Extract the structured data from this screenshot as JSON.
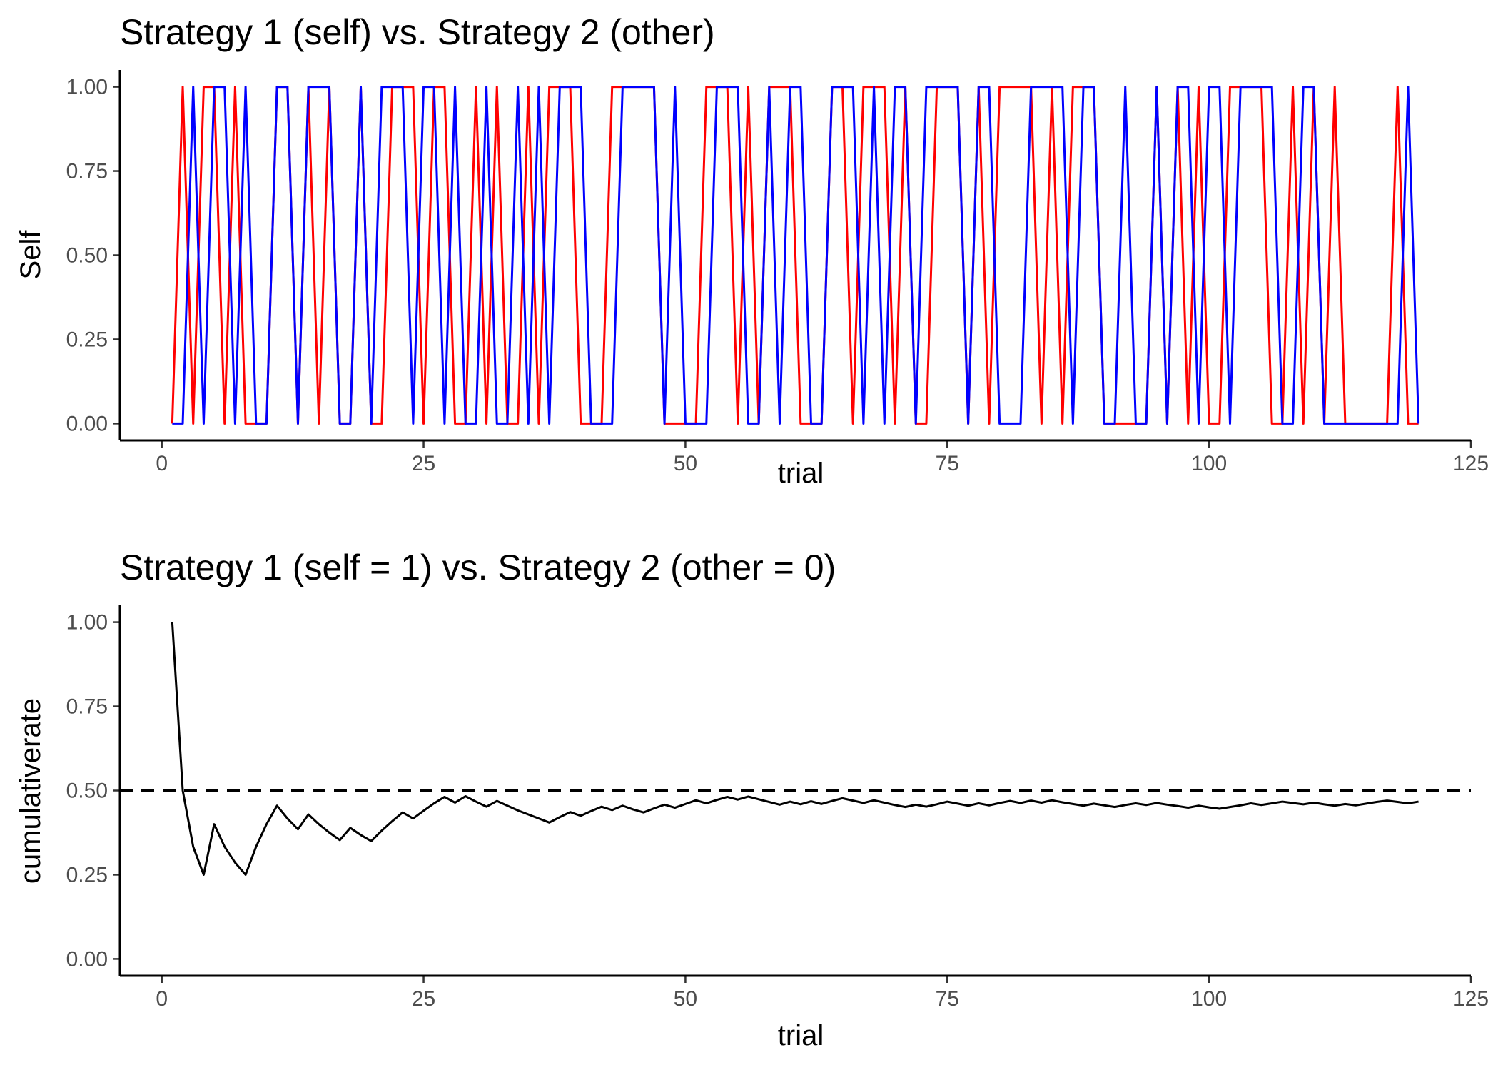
{
  "chart_data": [
    {
      "type": "line",
      "title": "Strategy 1 (self) vs. Strategy 2 (other)",
      "xlabel": "trial",
      "ylabel": "Self",
      "xlim": [
        -4,
        125
      ],
      "ylim": [
        -0.05,
        1.05
      ],
      "xticks": [
        0,
        25,
        50,
        75,
        100,
        125
      ],
      "yticks": [
        0,
        0.25,
        0.5,
        0.75,
        1
      ],
      "xtick_labels": [
        "0",
        "25",
        "50",
        "75",
        "100",
        "125"
      ],
      "ytick_labels": [
        "0.00",
        "0.25",
        "0.50",
        "0.75",
        "1.00"
      ],
      "grid": false,
      "legend": "none",
      "x": [
        1,
        2,
        3,
        4,
        5,
        6,
        7,
        8,
        9,
        10,
        11,
        12,
        13,
        14,
        15,
        16,
        17,
        18,
        19,
        20,
        21,
        22,
        23,
        24,
        25,
        26,
        27,
        28,
        29,
        30,
        31,
        32,
        33,
        34,
        35,
        36,
        37,
        38,
        39,
        40,
        41,
        42,
        43,
        44,
        45,
        46,
        47,
        48,
        49,
        50,
        51,
        52,
        53,
        54,
        55,
        56,
        57,
        58,
        59,
        60,
        61,
        62,
        63,
        64,
        65,
        66,
        67,
        68,
        69,
        70,
        71,
        72,
        73,
        74,
        75,
        76,
        77,
        78,
        79,
        80,
        81,
        82,
        83,
        84,
        85,
        86,
        87,
        88,
        89,
        90,
        91,
        92,
        93,
        94,
        95,
        96,
        97,
        98,
        99,
        100,
        101,
        102,
        103,
        104,
        105,
        106,
        107,
        108,
        109,
        110,
        111,
        112,
        113,
        114,
        115,
        116,
        117,
        118,
        119,
        120
      ],
      "series": [
        {
          "color": "#ff0000",
          "values": [
            0,
            1,
            0,
            1,
            1,
            0,
            1,
            0,
            0,
            0,
            1,
            1,
            0,
            1,
            0,
            1,
            0,
            0,
            1,
            0,
            0,
            1,
            1,
            1,
            0,
            1,
            1,
            0,
            0,
            1,
            0,
            1,
            0,
            0,
            1,
            0,
            1,
            1,
            1,
            0,
            0,
            0,
            1,
            1,
            1,
            1,
            1,
            0,
            0,
            0,
            0,
            1,
            1,
            1,
            0,
            1,
            0,
            1,
            1,
            1,
            0,
            0,
            0,
            1,
            1,
            0,
            1,
            1,
            1,
            0,
            1,
            0,
            0,
            1,
            1,
            1,
            0,
            1,
            0,
            1,
            1,
            1,
            1,
            0,
            1,
            0,
            1,
            1,
            1,
            0,
            0,
            0,
            0,
            0,
            1,
            0,
            1,
            0,
            1,
            0,
            0,
            1,
            1,
            1,
            1,
            0,
            0,
            1,
            0,
            1,
            0,
            1,
            0,
            0,
            0,
            0,
            0,
            1,
            0,
            0
          ]
        },
        {
          "color": "#0000ff",
          "values": [
            0,
            0,
            1,
            0,
            1,
            1,
            0,
            1,
            0,
            0,
            1,
            1,
            0,
            1,
            1,
            1,
            0,
            0,
            1,
            0,
            1,
            1,
            1,
            0,
            1,
            1,
            0,
            1,
            0,
            0,
            1,
            0,
            0,
            1,
            0,
            1,
            0,
            1,
            1,
            1,
            0,
            0,
            0,
            1,
            1,
            1,
            1,
            0,
            1,
            0,
            0,
            0,
            1,
            1,
            1,
            0,
            0,
            1,
            0,
            1,
            1,
            0,
            0,
            1,
            1,
            1,
            0,
            1,
            0,
            1,
            1,
            0,
            1,
            1,
            1,
            1,
            0,
            1,
            1,
            0,
            0,
            0,
            1,
            1,
            1,
            1,
            0,
            1,
            1,
            0,
            0,
            1,
            0,
            0,
            1,
            0,
            1,
            1,
            0,
            1,
            1,
            0,
            1,
            1,
            1,
            1,
            0,
            0,
            1,
            1,
            0,
            0,
            0,
            0,
            0,
            0,
            0,
            0,
            1,
            0
          ]
        }
      ]
    },
    {
      "type": "line",
      "title": "Strategy 1 (self = 1) vs. Strategy 2 (other = 0)",
      "xlabel": "trial",
      "ylabel": "cumulativerate",
      "xlim": [
        -4,
        125
      ],
      "ylim": [
        -0.05,
        1.05
      ],
      "xticks": [
        0,
        25,
        50,
        75,
        100,
        125
      ],
      "yticks": [
        0,
        0.25,
        0.5,
        0.75,
        1
      ],
      "xtick_labels": [
        "0",
        "25",
        "50",
        "75",
        "100",
        "125"
      ],
      "ytick_labels": [
        "0.00",
        "0.25",
        "0.50",
        "0.75",
        "1.00"
      ],
      "grid": false,
      "legend": "none",
      "reference_line": {
        "y": 0.5,
        "style": "dashed",
        "color": "#000000"
      },
      "x": [
        1,
        2,
        3,
        4,
        5,
        6,
        7,
        8,
        9,
        10,
        11,
        12,
        13,
        14,
        15,
        16,
        17,
        18,
        19,
        20,
        21,
        22,
        23,
        24,
        25,
        26,
        27,
        28,
        29,
        30,
        31,
        32,
        33,
        34,
        35,
        36,
        37,
        38,
        39,
        40,
        41,
        42,
        43,
        44,
        45,
        46,
        47,
        48,
        49,
        50,
        51,
        52,
        53,
        54,
        55,
        56,
        57,
        58,
        59,
        60,
        61,
        62,
        63,
        64,
        65,
        66,
        67,
        68,
        69,
        70,
        71,
        72,
        73,
        74,
        75,
        76,
        77,
        78,
        79,
        80,
        81,
        82,
        83,
        84,
        85,
        86,
        87,
        88,
        89,
        90,
        91,
        92,
        93,
        94,
        95,
        96,
        97,
        98,
        99,
        100,
        101,
        102,
        103,
        104,
        105,
        106,
        107,
        108,
        109,
        110,
        111,
        112,
        113,
        114,
        115,
        116,
        117,
        118,
        119,
        120
      ],
      "series": [
        {
          "color": "#000000",
          "values": [
            1.0,
            0.5,
            0.333,
            0.25,
            0.4,
            0.333,
            0.286,
            0.25,
            0.333,
            0.4,
            0.455,
            0.417,
            0.385,
            0.429,
            0.4,
            0.375,
            0.353,
            0.389,
            0.368,
            0.35,
            0.381,
            0.409,
            0.435,
            0.417,
            0.44,
            0.462,
            0.481,
            0.464,
            0.483,
            0.467,
            0.452,
            0.469,
            0.455,
            0.441,
            0.429,
            0.417,
            0.405,
            0.421,
            0.436,
            0.425,
            0.439,
            0.452,
            0.442,
            0.455,
            0.444,
            0.435,
            0.447,
            0.458,
            0.449,
            0.46,
            0.471,
            0.462,
            0.472,
            0.481,
            0.473,
            0.482,
            0.474,
            0.466,
            0.458,
            0.467,
            0.459,
            0.468,
            0.46,
            0.469,
            0.477,
            0.47,
            0.463,
            0.471,
            0.464,
            0.457,
            0.451,
            0.458,
            0.452,
            0.459,
            0.467,
            0.461,
            0.455,
            0.462,
            0.456,
            0.463,
            0.469,
            0.463,
            0.47,
            0.464,
            0.471,
            0.465,
            0.46,
            0.455,
            0.461,
            0.456,
            0.451,
            0.457,
            0.462,
            0.457,
            0.463,
            0.458,
            0.454,
            0.449,
            0.455,
            0.45,
            0.446,
            0.451,
            0.456,
            0.462,
            0.457,
            0.462,
            0.467,
            0.463,
            0.459,
            0.464,
            0.459,
            0.455,
            0.46,
            0.456,
            0.461,
            0.466,
            0.47,
            0.466,
            0.462,
            0.467
          ]
        }
      ]
    }
  ]
}
